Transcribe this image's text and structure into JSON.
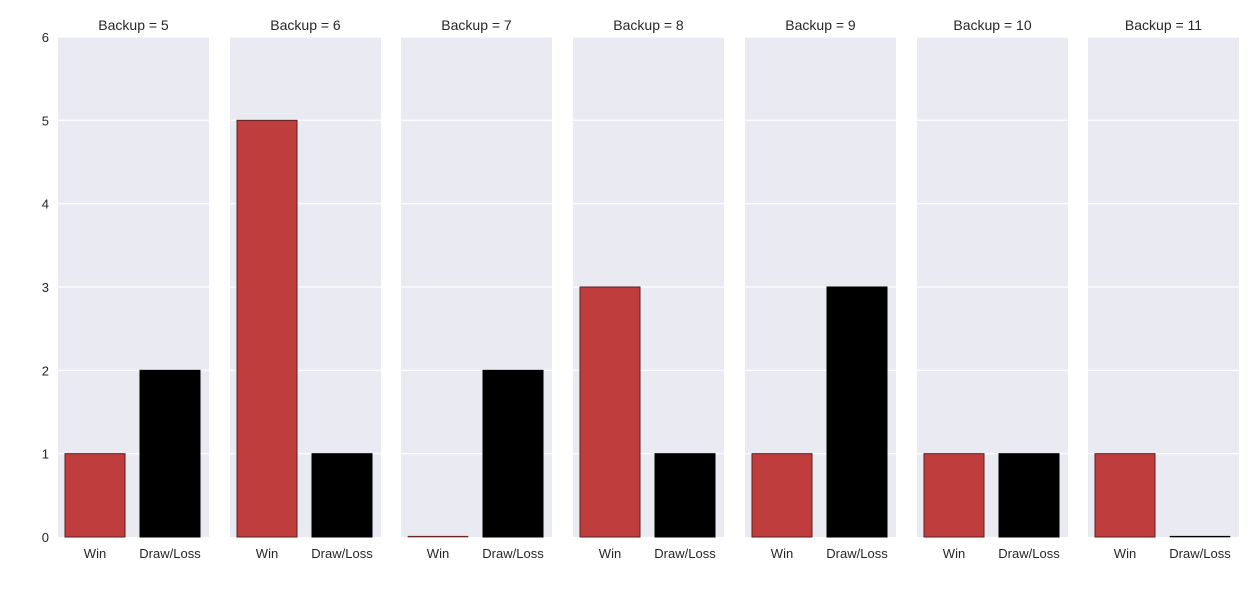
{
  "chart_data": {
    "type": "bar",
    "facet_label_prefix": "Backup = ",
    "categories": [
      "Win",
      "Draw/Loss"
    ],
    "ylim": [
      0,
      6
    ],
    "yticks": [
      0,
      1,
      2,
      3,
      4,
      5,
      6
    ],
    "grid": true,
    "colors": {
      "Win": "#c03d3e",
      "Draw/Loss": "#000000",
      "panel_background": "#eaeaf2",
      "gridline": "#ffffff",
      "bar_edge": "#5a2020"
    },
    "facets": [
      {
        "title": "Backup = 5",
        "values": [
          1,
          2
        ]
      },
      {
        "title": "Backup = 6",
        "values": [
          5,
          1
        ]
      },
      {
        "title": "Backup = 7",
        "values": [
          0,
          2
        ]
      },
      {
        "title": "Backup = 8",
        "values": [
          3,
          1
        ]
      },
      {
        "title": "Backup = 9",
        "values": [
          1,
          3
        ]
      },
      {
        "title": "Backup = 10",
        "values": [
          1,
          1
        ]
      },
      {
        "title": "Backup = 11",
        "values": [
          1,
          0
        ]
      }
    ]
  }
}
